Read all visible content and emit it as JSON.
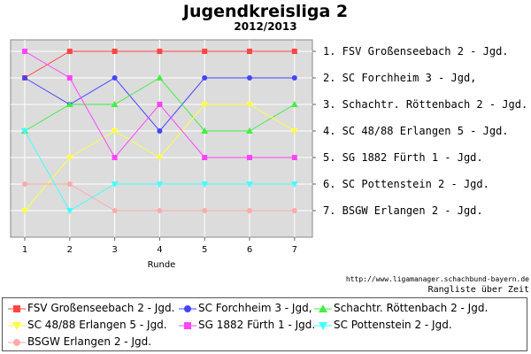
{
  "chart_data": {
    "type": "line",
    "title": "Jugendkreisliga 2",
    "subtitle": "2012/2013",
    "xlabel": "Runde",
    "ylabel": "",
    "x": [
      1,
      2,
      3,
      4,
      5,
      6,
      7
    ],
    "ylim": [
      1,
      7
    ],
    "y_inverted": true,
    "grid": true,
    "legend_position": "bottom",
    "right_labels": [
      "1. FSV Großenseebach 2 - Jgd.",
      "2. SC Forchheim 3 - Jgd,",
      "3. Schachtr. Röttenbach 2 - Jgd.",
      "4. SC 48/88 Erlangen 5 - Jgd.",
      "5. SG 1882 Fürth 1 - Jgd.",
      "6. SC Pottenstein 2 - Jgd.",
      "7. BSGW Erlangen 2 - Jgd."
    ],
    "series": [
      {
        "name": "FSV Großenseebach 2 - Jgd.",
        "color": "#ff4444",
        "marker": "square",
        "values": [
          2,
          1,
          1,
          1,
          1,
          1,
          1
        ]
      },
      {
        "name": "SC Forchheim 3 - Jgd,",
        "color": "#4444ff",
        "marker": "circle",
        "values": [
          2,
          3,
          2,
          4,
          2,
          2,
          2
        ]
      },
      {
        "name": "Schachtr. Röttenbach 2 - Jgd.",
        "color": "#44ee44",
        "marker": "triangle-up",
        "values": [
          4,
          3,
          3,
          2,
          4,
          4,
          3
        ]
      },
      {
        "name": "SC 48/88 Erlangen 5 - Jgd.",
        "color": "#ffff44",
        "marker": "triangle-down",
        "values": [
          7,
          5,
          4,
          5,
          3,
          3,
          4
        ]
      },
      {
        "name": "SG 1882 Fürth 1 - Jgd.",
        "color": "#ff44ff",
        "marker": "square",
        "values": [
          1,
          2,
          5,
          3,
          5,
          5,
          5
        ]
      },
      {
        "name": "SC Pottenstein 2 - Jgd.",
        "color": "#44ffff",
        "marker": "triangle-down",
        "values": [
          4,
          7,
          6,
          6,
          6,
          6,
          6
        ]
      },
      {
        "name": "BSGW Erlangen 2 - Jgd.",
        "color": "#ffaaaa",
        "marker": "circle",
        "values": [
          6,
          6,
          7,
          7,
          7,
          7,
          7
        ]
      }
    ]
  },
  "footer": {
    "url": "http://www.ligamanager.schachbund-bayern.de",
    "caption": "Rangliste über Zeit"
  }
}
